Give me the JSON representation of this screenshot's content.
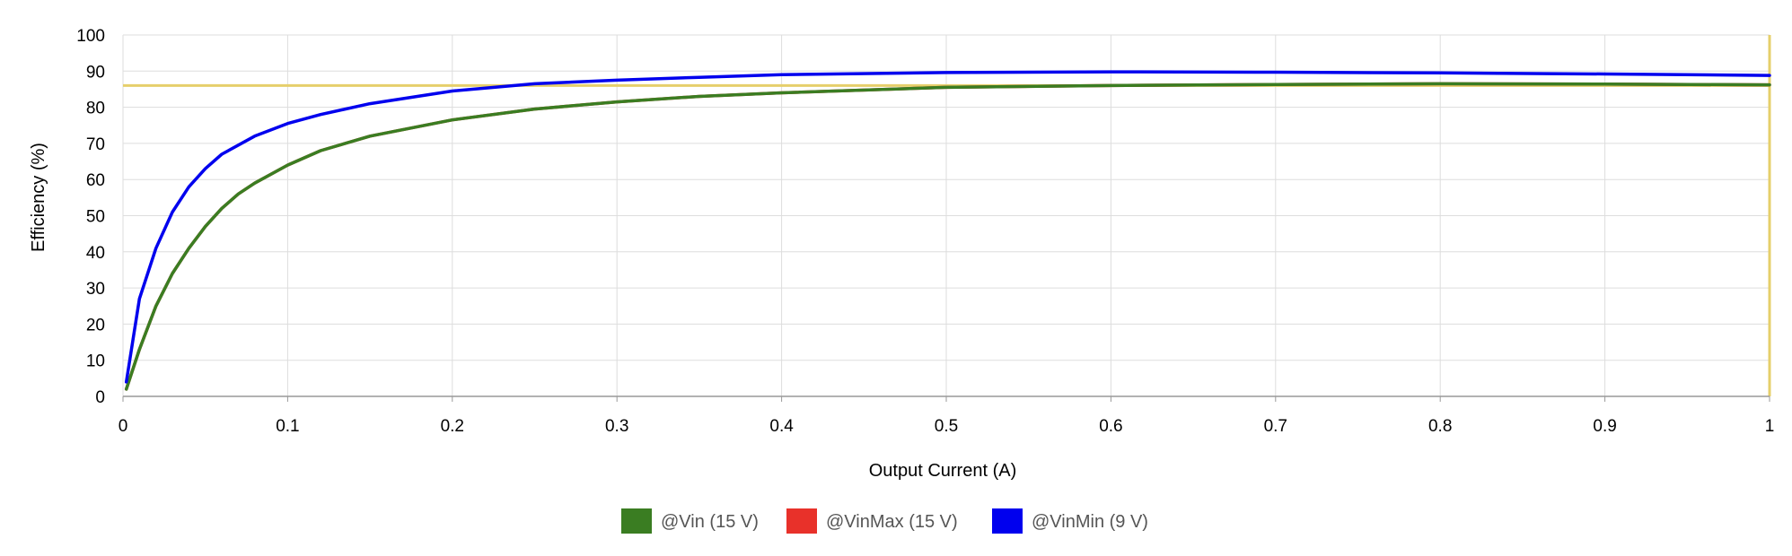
{
  "chart_data": {
    "type": "line",
    "title": "",
    "xlabel": "Output Current (A)",
    "ylabel": "Efficiency (%)",
    "xlim": [
      0,
      1
    ],
    "ylim": [
      0,
      100
    ],
    "x_ticks": [
      0,
      0.1,
      0.2,
      0.3,
      0.4,
      0.5,
      0.6,
      0.7,
      0.8,
      0.9,
      1
    ],
    "x_tick_labels": [
      "0",
      "0.1",
      "0.2",
      "0.3",
      "0.4",
      "0.5",
      "0.6",
      "0.7",
      "0.8",
      "0.9",
      "1"
    ],
    "y_ticks": [
      0,
      10,
      20,
      30,
      40,
      50,
      60,
      70,
      80,
      90,
      100
    ],
    "y_tick_labels": [
      "0",
      "10",
      "20",
      "30",
      "40",
      "50",
      "60",
      "70",
      "80",
      "90",
      "100"
    ],
    "grid": true,
    "legend_position": "bottom-center",
    "reference_lines": [
      {
        "orientation": "horizontal",
        "value": 86,
        "color": "#e6cf6b"
      },
      {
        "orientation": "vertical",
        "value": 1,
        "color": "#e6cf6b"
      }
    ],
    "series": [
      {
        "name": "@Vin (15 V)",
        "color": "#3a7d22",
        "x": [
          0.002,
          0.01,
          0.02,
          0.03,
          0.04,
          0.05,
          0.06,
          0.07,
          0.08,
          0.1,
          0.12,
          0.15,
          0.2,
          0.25,
          0.3,
          0.35,
          0.4,
          0.5,
          0.6,
          0.7,
          0.8,
          0.9,
          1.0
        ],
        "y": [
          2,
          13,
          25,
          34,
          41,
          47,
          52,
          56,
          59,
          64,
          68,
          72,
          76.5,
          79.5,
          81.5,
          83,
          84,
          85.5,
          86,
          86.3,
          86.5,
          86.4,
          86.2
        ]
      },
      {
        "name": "@VinMax (15 V)",
        "color": "#e8312a",
        "x": [
          0.002,
          0.01,
          0.02,
          0.03,
          0.04,
          0.05,
          0.06,
          0.07,
          0.08,
          0.1,
          0.12,
          0.15,
          0.2,
          0.25,
          0.3,
          0.35,
          0.4,
          0.5,
          0.6,
          0.7,
          0.8,
          0.9,
          1.0
        ],
        "y": [
          2,
          13,
          25,
          34,
          41,
          47,
          52,
          56,
          59,
          64,
          68,
          72,
          76.5,
          79.5,
          81.5,
          83,
          84,
          85.5,
          86,
          86.3,
          86.5,
          86.4,
          86.2
        ]
      },
      {
        "name": "@VinMin (9 V)",
        "color": "#0000ee",
        "x": [
          0.002,
          0.01,
          0.02,
          0.03,
          0.04,
          0.05,
          0.06,
          0.08,
          0.1,
          0.12,
          0.15,
          0.2,
          0.25,
          0.3,
          0.35,
          0.4,
          0.5,
          0.6,
          0.7,
          0.8,
          0.9,
          1.0
        ],
        "y": [
          4,
          27,
          41,
          51,
          58,
          63,
          67,
          72,
          75.5,
          78,
          81,
          84.5,
          86.5,
          87.5,
          88.3,
          89,
          89.6,
          89.8,
          89.7,
          89.5,
          89.2,
          88.8
        ]
      }
    ]
  }
}
